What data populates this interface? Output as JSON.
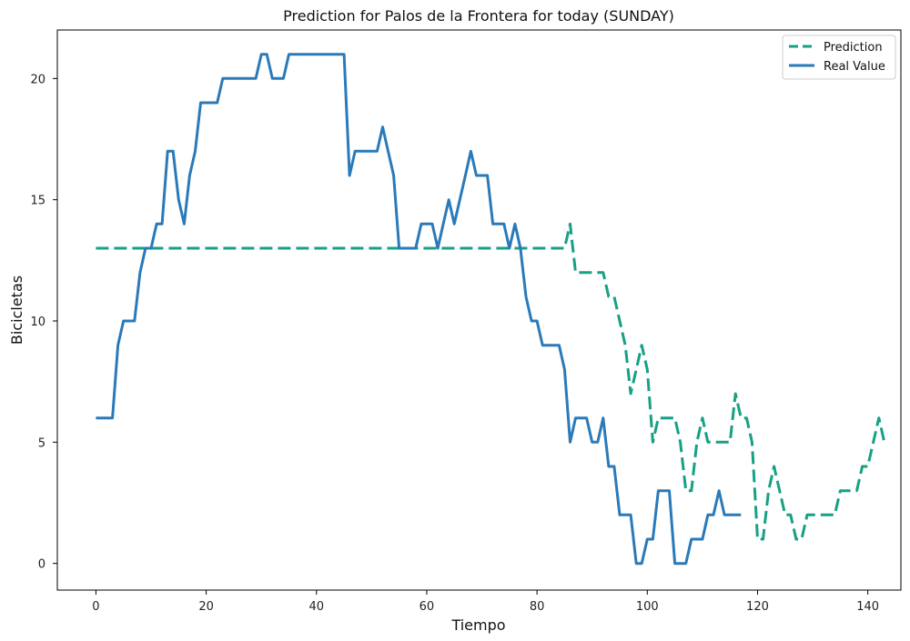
{
  "chart_data": {
    "type": "line",
    "title": "Prediction for Palos de la Frontera for today (SUNDAY)",
    "xlabel": "Tiempo",
    "ylabel": "Bicicletas",
    "xlim": [
      -7,
      146
    ],
    "ylim": [
      -1.1,
      22
    ],
    "xticks": [
      0,
      20,
      40,
      60,
      80,
      100,
      120,
      140
    ],
    "yticks": [
      0,
      5,
      10,
      15,
      20
    ],
    "grid": false,
    "legend_position": "top-right",
    "series": [
      {
        "name": "Prediction",
        "color": "#17a085",
        "style": "dashed",
        "x": [
          0,
          85,
          86,
          87,
          91,
          92,
          93,
          94,
          95,
          96,
          97,
          98,
          99,
          100,
          101,
          102,
          103,
          104,
          105,
          106,
          107,
          108,
          109,
          110,
          111,
          112,
          113,
          114,
          115,
          116,
          117,
          118,
          119,
          120,
          121,
          122,
          123,
          124,
          125,
          126,
          127,
          128,
          129,
          130,
          131,
          132,
          133,
          134,
          135,
          136,
          137,
          138,
          139,
          140,
          141,
          142,
          143
        ],
        "y": [
          13,
          13,
          14,
          12,
          12,
          12,
          11,
          11,
          10,
          9,
          7,
          8,
          9,
          8,
          5,
          6,
          6,
          6,
          6,
          5,
          3,
          3,
          5,
          6,
          5,
          5,
          5,
          5,
          5,
          7,
          6,
          6,
          5,
          1,
          1,
          3,
          4,
          3,
          2,
          2,
          1,
          1,
          2,
          2,
          2,
          2,
          2,
          2,
          3,
          3,
          3,
          3,
          4,
          4,
          5,
          6,
          5
        ]
      },
      {
        "name": "Real Value",
        "color": "#2a7ab9",
        "style": "solid",
        "x": [
          0,
          1,
          2,
          3,
          4,
          5,
          6,
          7,
          8,
          9,
          10,
          11,
          12,
          13,
          14,
          15,
          16,
          17,
          18,
          19,
          20,
          21,
          22,
          23,
          24,
          25,
          26,
          27,
          28,
          29,
          30,
          31,
          32,
          33,
          34,
          35,
          36,
          37,
          38,
          39,
          40,
          41,
          42,
          43,
          44,
          45,
          46,
          47,
          48,
          49,
          50,
          51,
          52,
          53,
          54,
          55,
          56,
          57,
          58,
          59,
          60,
          61,
          62,
          63,
          64,
          65,
          66,
          67,
          68,
          69,
          70,
          71,
          72,
          73,
          74,
          75,
          76,
          77,
          78,
          79,
          80,
          81,
          82,
          83,
          84,
          85,
          86,
          87,
          88,
          89,
          90,
          91,
          92,
          93,
          94,
          95,
          96,
          97,
          98,
          99,
          100,
          101,
          102,
          103,
          104,
          105,
          106,
          107,
          108,
          109,
          110,
          111,
          112,
          113,
          114,
          115,
          116,
          117
        ],
        "y": [
          6,
          6,
          6,
          6,
          9,
          10,
          10,
          10,
          12,
          13,
          13,
          14,
          14,
          17,
          17,
          15,
          14,
          16,
          17,
          19,
          19,
          19,
          19,
          20,
          20,
          20,
          20,
          20,
          20,
          20,
          21,
          21,
          20,
          20,
          20,
          21,
          21,
          21,
          21,
          21,
          21,
          21,
          21,
          21,
          21,
          21,
          16,
          17,
          17,
          17,
          17,
          17,
          18,
          17,
          16,
          13,
          13,
          13,
          13,
          14,
          14,
          14,
          13,
          14,
          15,
          14,
          15,
          16,
          17,
          16,
          16,
          16,
          14,
          14,
          14,
          13,
          14,
          13,
          11,
          10,
          10,
          9,
          9,
          9,
          9,
          8,
          5,
          6,
          6,
          6,
          5,
          5,
          6,
          4,
          4,
          2,
          2,
          2,
          0,
          0,
          1,
          1,
          3,
          3,
          3,
          0,
          0,
          0,
          1,
          1,
          1,
          2,
          2,
          3,
          2,
          2,
          2,
          2
        ]
      }
    ]
  }
}
